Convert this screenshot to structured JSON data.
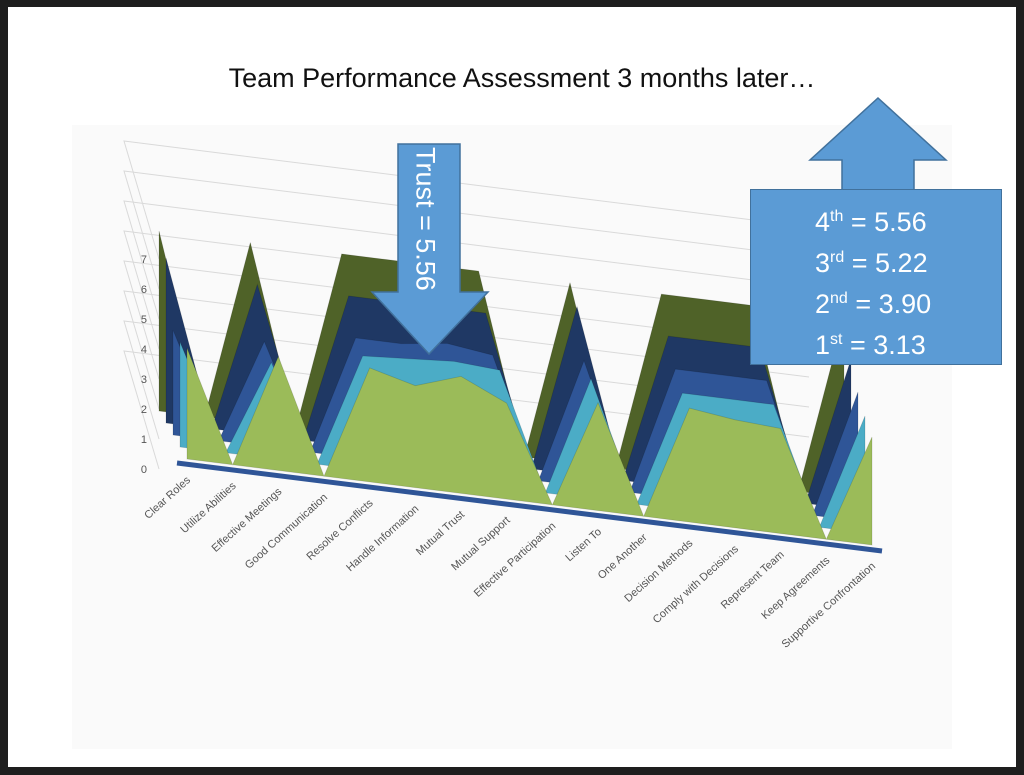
{
  "slide": {
    "title": "Team Performance Assessment 3 months later…"
  },
  "callouts": {
    "trust": "Trust = 5.56",
    "ranks": [
      {
        "ord": "4",
        "sup": "th",
        "value": " = 5.56"
      },
      {
        "ord": "3",
        "sup": "rd",
        "value": " = 5.22"
      },
      {
        "ord": "2",
        "sup": "nd",
        "value": " = 3.90"
      },
      {
        "ord": "1",
        "sup": "st",
        "value": " =  3.13"
      }
    ]
  },
  "colors": {
    "series": [
      "#4f6228",
      "#1f3864",
      "#2f5597",
      "#4bacc6",
      "#9bbb59"
    ],
    "arrow_fill": "#5b9bd5",
    "arrow_stroke": "#41719c"
  },
  "chart_data": {
    "type": "area",
    "view": "3d",
    "ylim": [
      0,
      7
    ],
    "yticks": [
      0,
      1,
      2,
      3,
      4,
      5,
      6,
      7
    ],
    "categories": [
      "Clear Roles",
      "Utilize Abilities",
      "Effective Meetings",
      "Good Communication",
      "Resolve Conflicts",
      "Handle Information",
      "Mutual Trust",
      "Mutual Support",
      "Effective Participation",
      "Listen To",
      "One Another",
      "Decision Methods",
      "Comply with Decisions",
      "Represent Team",
      "Keep Agreements",
      "Supportive Confrontation"
    ],
    "series": [
      {
        "values": [
          6.0,
          0,
          6.0,
          0,
          6.0,
          6.0,
          6.0,
          6.0,
          0,
          6.0,
          0,
          6.0,
          6.0,
          6.0,
          0,
          6.0
        ]
      },
      {
        "values": [
          5.5,
          0,
          5.0,
          0,
          5.0,
          5.0,
          5.0,
          5.0,
          0,
          5.6,
          0,
          5.0,
          5.0,
          5.0,
          0,
          5.0
        ]
      },
      {
        "values": [
          3.5,
          0,
          3.5,
          0,
          4.0,
          4.0,
          4.2,
          4.0,
          0,
          4.2,
          0,
          4.3,
          4.3,
          4.3,
          0,
          4.3
        ]
      },
      {
        "values": [
          3.5,
          0,
          3.2,
          0,
          3.8,
          3.9,
          4.0,
          3.9,
          0,
          4.0,
          0,
          3.9,
          3.9,
          3.9,
          0,
          3.9
        ]
      },
      {
        "values": [
          3.7,
          0,
          3.8,
          0,
          3.8,
          3.4,
          3.9,
          3.2,
          0,
          3.6,
          0,
          3.8,
          3.6,
          3.5,
          0,
          3.6
        ]
      }
    ]
  }
}
